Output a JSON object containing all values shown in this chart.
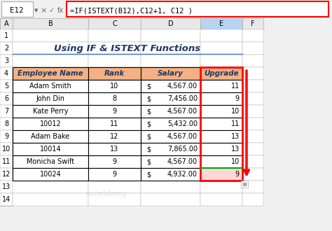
{
  "title": "Using IF & ISTEXT Functions",
  "formula_bar_cell": "E12",
  "formula_bar_text": "=IF(ISTEXT(B12),C12+1, C12 )",
  "col_headers": [
    "A",
    "B",
    "C",
    "D",
    "E",
    "F"
  ],
  "row_headers": [
    "1",
    "2",
    "3",
    "4",
    "5",
    "6",
    "7",
    "8",
    "9",
    "10",
    "11",
    "12",
    "13",
    "14"
  ],
  "table_headers": [
    "Employee Name",
    "Rank",
    "Salary",
    "Upgrade"
  ],
  "table_data": [
    [
      "Adam Smith",
      "10",
      "$",
      "4,567.00",
      "11"
    ],
    [
      "John Din",
      "8",
      "$",
      "7,456.00",
      "9"
    ],
    [
      "Kate Perry",
      "9",
      "$",
      "4,567.00",
      "10"
    ],
    [
      "10012",
      "11",
      "$",
      "5,432.00",
      "11"
    ],
    [
      "Adam Bake",
      "12",
      "$",
      "4,567.00",
      "13"
    ],
    [
      "10014",
      "13",
      "$",
      "7,865.00",
      "13"
    ],
    [
      "Monicha Swift",
      "9",
      "$",
      "4,567.00",
      "10"
    ],
    [
      "10024",
      "9",
      "$",
      "4,932.00",
      "9"
    ]
  ],
  "header_bg": "#F4B183",
  "upgrade_bg": "#FFFFFF",
  "selected_cell_bg": "#FFD7D7",
  "grid_color": "#AAAAAA",
  "border_color": "#000000",
  "red_border_color": "#FF0000",
  "green_line_color": "#00AA00",
  "formula_bar_border": "#FF0000",
  "bg_color": "#FFFFFF",
  "excel_bg": "#F0F0F0",
  "title_color": "#1F3864",
  "header_font_color": "#1F3864"
}
